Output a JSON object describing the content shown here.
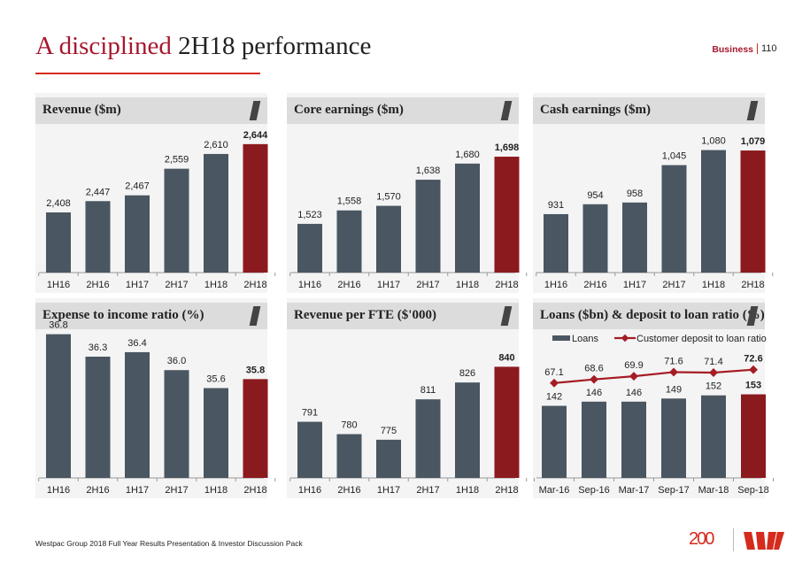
{
  "header": {
    "title_accent": "A disciplined",
    "title_rest": "2H18 performance",
    "section": "Business",
    "page_number": "110"
  },
  "footer": {
    "text": "Westpac Group 2018 Full Year Results Presentation & Investor Discussion Pack",
    "logo_200": "200"
  },
  "colors": {
    "bar": "#4a5661",
    "highlight": "#8b1a1e",
    "line": "#a51c24",
    "accent": "#d52b1e"
  },
  "chart_data": [
    {
      "type": "bar",
      "title": "Revenue ($m)",
      "categories": [
        "1H16",
        "2H16",
        "1H17",
        "2H17",
        "1H18",
        "2H18"
      ],
      "values": [
        2408,
        2447,
        2467,
        2559,
        2610,
        2644
      ],
      "labels": [
        "2,408",
        "2,447",
        "2,467",
        "2,559",
        "2,610",
        "2,644"
      ],
      "ylim": [
        2200,
        2720
      ],
      "highlight_last": true
    },
    {
      "type": "bar",
      "title": "Core earnings ($m)",
      "categories": [
        "1H16",
        "2H16",
        "1H17",
        "2H17",
        "1H18",
        "2H18"
      ],
      "values": [
        1523,
        1558,
        1570,
        1638,
        1680,
        1698
      ],
      "labels": [
        "1,523",
        "1,558",
        "1,570",
        "1,638",
        "1,680",
        "1,698"
      ],
      "ylim": [
        1396,
        1788
      ],
      "highlight_last": true
    },
    {
      "type": "bar",
      "title": "Cash earnings ($m)",
      "categories": [
        "1H16",
        "2H16",
        "1H17",
        "2H17",
        "1H18",
        "2H18"
      ],
      "values": [
        931,
        954,
        958,
        1045,
        1080,
        1079
      ],
      "labels": [
        "931",
        "954",
        "958",
        "1,045",
        "1,080",
        "1,079"
      ],
      "ylim": [
        795,
        1145
      ],
      "highlight_last": true
    },
    {
      "type": "bar",
      "title": "Expense to income ratio (%)",
      "categories": [
        "1H16",
        "2H16",
        "1H17",
        "2H17",
        "1H18",
        "2H18"
      ],
      "values": [
        36.8,
        36.3,
        36.4,
        36.0,
        35.6,
        35.8
      ],
      "labels": [
        "36.8",
        "36.3",
        "36.4",
        "36.0",
        "35.6",
        "35.8"
      ],
      "ylim": [
        33.6,
        36.95
      ],
      "highlight_last": true
    },
    {
      "type": "bar",
      "title": "Revenue per FTE ($'000)",
      "categories": [
        "1H16",
        "2H16",
        "1H17",
        "2H17",
        "1H18",
        "2H18"
      ],
      "values": [
        791,
        780,
        775,
        811,
        826,
        840
      ],
      "labels": [
        "791",
        "780",
        "775",
        "811",
        "826",
        "840"
      ],
      "ylim": [
        741,
        875
      ],
      "highlight_last": true
    },
    {
      "type": "bar+line",
      "title": "Loans ($bn) & deposit to loan ratio (%)",
      "categories": [
        "Mar-16",
        "Sep-16",
        "Mar-17",
        "Sep-17",
        "Mar-18",
        "Sep-18"
      ],
      "series": [
        {
          "name": "Loans",
          "type": "bar",
          "values": [
            142,
            146,
            146,
            149,
            152,
            153
          ],
          "labels": [
            "142",
            "146",
            "146",
            "149",
            "152",
            "153"
          ],
          "ylim": [
            73,
            217
          ]
        },
        {
          "name": "Customer deposit to loan ratio",
          "type": "line",
          "values": [
            67.1,
            68.6,
            69.9,
            71.6,
            71.4,
            72.6
          ],
          "labels": [
            "67.1",
            "68.6",
            "69.9",
            "71.6",
            "71.4",
            "72.6"
          ],
          "ylim": [
            28,
            90
          ]
        }
      ],
      "legend": "top",
      "highlight_last": true
    }
  ]
}
